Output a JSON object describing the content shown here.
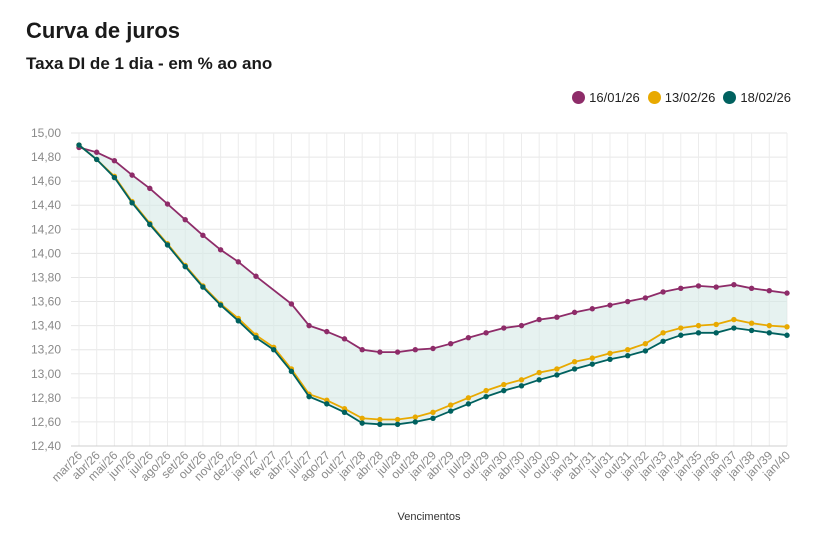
{
  "chart_data": {
    "type": "line",
    "title": "Curva de juros",
    "subtitle": "Taxa DI de 1 dia - em % ao ano",
    "xlabel": "Vencimentos",
    "ylabel": "",
    "ylim": [
      12.4,
      15.0
    ],
    "yticks": [
      "15,00",
      "14,80",
      "14,60",
      "14,40",
      "14,20",
      "14,00",
      "13,80",
      "13,60",
      "13,40",
      "13,20",
      "13,00",
      "12,80",
      "12,60",
      "12,40"
    ],
    "categories": [
      "mar/26",
      "abr/26",
      "mai/26",
      "jun/26",
      "jul/26",
      "ago/26",
      "set/26",
      "out/26",
      "nov/26",
      "dez/26",
      "jan/27",
      "fev/27",
      "abr/27",
      "jul/27",
      "ago/27",
      "out/27",
      "jan/28",
      "abr/28",
      "jul/28",
      "out/28",
      "jan/29",
      "abr/29",
      "jul/29",
      "out/29",
      "jan/30",
      "abr/30",
      "jul/30",
      "out/30",
      "jan/31",
      "abr/31",
      "jul/31",
      "out/31",
      "jan/32",
      "jan/33",
      "jan/34",
      "jan/35",
      "jan/36",
      "jan/37",
      "jan/38",
      "jan/39",
      "jan/40"
    ],
    "grid": true,
    "legend_position": "top-right",
    "series": [
      {
        "name": "16/01/26",
        "color": "#8e2c69",
        "values": [
          14.88,
          14.84,
          14.77,
          14.65,
          14.54,
          14.41,
          14.28,
          14.15,
          14.03,
          13.93,
          13.81,
          null,
          13.58,
          13.4,
          13.35,
          13.29,
          13.2,
          13.18,
          13.18,
          13.2,
          13.21,
          13.25,
          13.3,
          13.34,
          13.38,
          13.4,
          13.45,
          13.47,
          13.51,
          13.54,
          13.57,
          13.6,
          13.63,
          13.68,
          13.71,
          13.73,
          13.72,
          13.74,
          13.71,
          13.69,
          13.67
        ]
      },
      {
        "name": "13/02/26",
        "color": "#e8a900",
        "values": [
          14.9,
          14.78,
          14.64,
          14.43,
          14.25,
          14.08,
          13.9,
          13.73,
          13.58,
          13.46,
          13.32,
          13.22,
          13.04,
          12.83,
          12.78,
          12.71,
          12.63,
          12.62,
          12.62,
          12.64,
          12.68,
          12.74,
          12.8,
          12.86,
          12.91,
          12.95,
          13.01,
          13.04,
          13.1,
          13.13,
          13.17,
          13.2,
          13.25,
          13.34,
          13.38,
          13.4,
          13.41,
          13.45,
          13.42,
          13.4,
          13.39
        ]
      },
      {
        "name": "18/02/26",
        "color": "#00615f",
        "values": [
          14.9,
          14.78,
          14.63,
          14.42,
          14.24,
          14.07,
          13.89,
          13.72,
          13.57,
          13.44,
          13.3,
          13.2,
          13.02,
          12.81,
          12.75,
          12.68,
          12.59,
          12.58,
          12.58,
          12.6,
          12.63,
          12.69,
          12.75,
          12.81,
          12.86,
          12.9,
          12.95,
          12.99,
          13.04,
          13.08,
          13.12,
          13.15,
          13.19,
          13.27,
          13.32,
          13.34,
          13.34,
          13.38,
          13.36,
          13.34,
          13.32
        ]
      }
    ]
  }
}
